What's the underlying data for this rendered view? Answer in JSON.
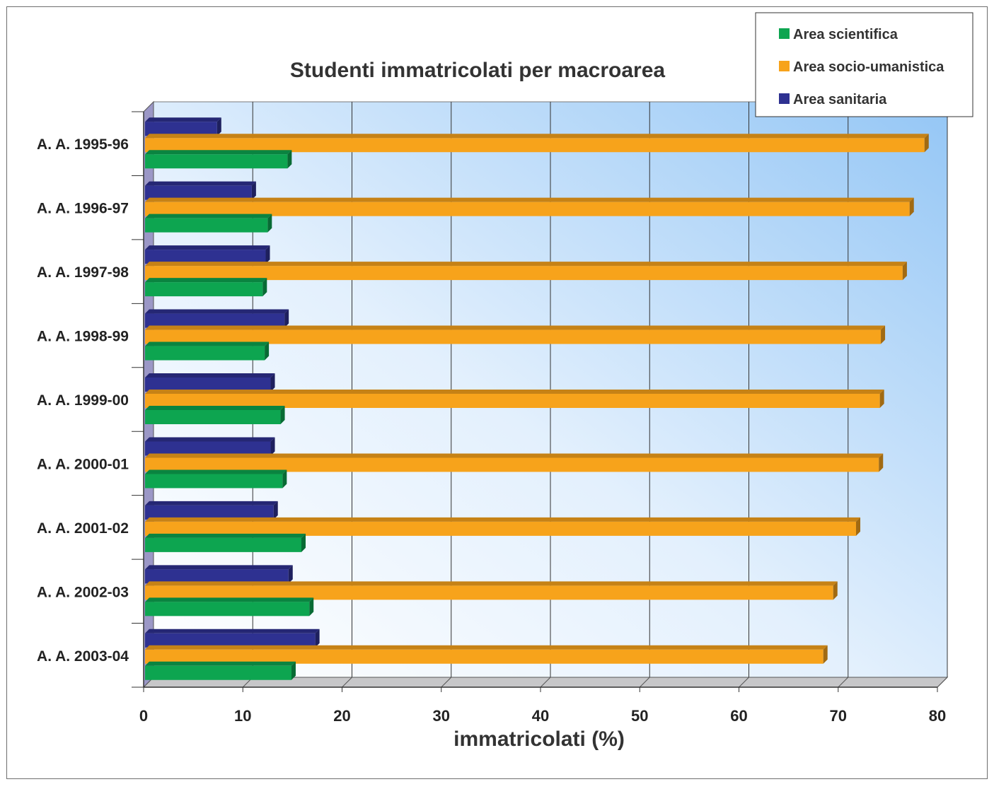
{
  "chart_data": {
    "type": "bar",
    "orientation": "horizontal",
    "title": "Studenti immatricolati per macroarea",
    "xlabel": "immatricolati (%)",
    "ylabel": "",
    "xlim": [
      0,
      80
    ],
    "xticks": [
      0,
      10,
      20,
      30,
      40,
      50,
      60,
      70,
      80
    ],
    "grid": true,
    "legend_position": "top-right",
    "categories": [
      "A. A. 1995-96",
      "A. A. 1996-97",
      "A. A. 1997-98",
      "A. A. 1998-99",
      "A. A. 1999-00",
      "A. A. 2000-01",
      "A. A. 2001-02",
      "A. A. 2002-03",
      "A. A. 2003-04"
    ],
    "series": [
      {
        "name": "Area scientifica",
        "color": "#0da550",
        "values": [
          14.5,
          12.5,
          12.0,
          12.2,
          13.8,
          14.0,
          15.9,
          16.7,
          14.9
        ]
      },
      {
        "name": "Area socio-umanistica",
        "color": "#f7a31b",
        "values": [
          78.7,
          77.2,
          76.5,
          74.3,
          74.2,
          74.1,
          71.8,
          69.5,
          68.5
        ]
      },
      {
        "name": "Area sanitaria",
        "color": "#2e3191",
        "values": [
          7.4,
          10.9,
          12.3,
          14.2,
          12.8,
          12.8,
          13.1,
          14.6,
          17.3
        ]
      }
    ],
    "colors": {
      "plot_gradient_top": "#9ccaf6",
      "plot_gradient_bottom": "#ffffff",
      "side_wall": "#9b97c6",
      "floor": "#c7c7c9"
    }
  }
}
